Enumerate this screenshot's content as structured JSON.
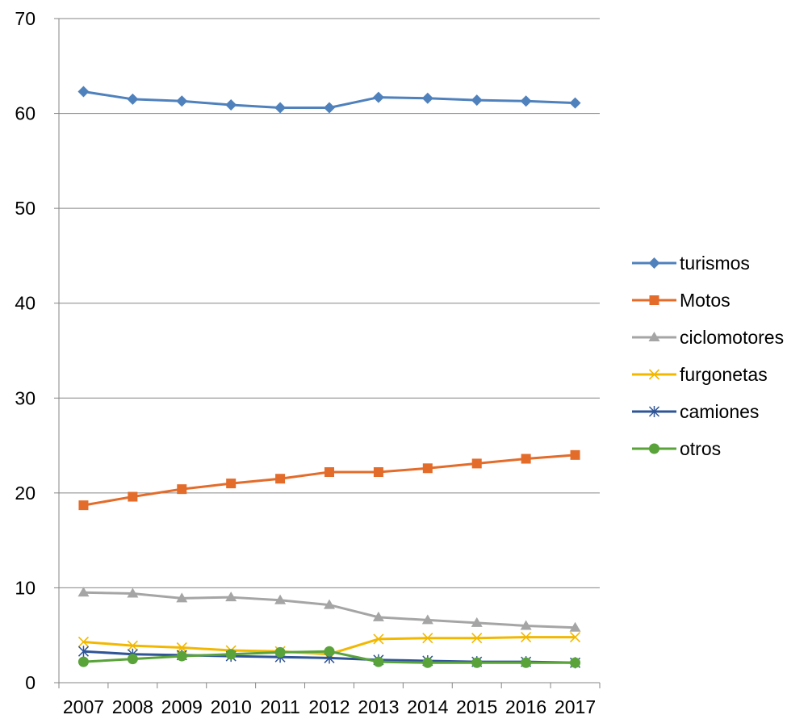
{
  "chart_data": {
    "type": "line",
    "title": "",
    "xlabel": "",
    "ylabel": "",
    "ylim": [
      0,
      70
    ],
    "yticks": [
      0,
      10,
      20,
      30,
      40,
      50,
      60,
      70
    ],
    "grid": "horizontal",
    "legend_position": "right",
    "categories": [
      "2007",
      "2008",
      "2009",
      "2010",
      "2011",
      "2012",
      "2013",
      "2014",
      "2015",
      "2016",
      "2017"
    ],
    "series": [
      {
        "name": "turismos",
        "color": "#4F81BD",
        "marker": "diamond",
        "values": [
          62.3,
          61.5,
          61.3,
          60.9,
          60.6,
          60.6,
          61.7,
          61.6,
          61.4,
          61.3,
          61.1
        ]
      },
      {
        "name": "Motos",
        "color": "#E36C2A",
        "marker": "square",
        "values": [
          18.7,
          19.6,
          20.4,
          21.0,
          21.5,
          22.2,
          22.2,
          22.6,
          23.1,
          23.6,
          24.0
        ]
      },
      {
        "name": "ciclomotores",
        "color": "#A5A5A5",
        "marker": "triangle",
        "values": [
          9.5,
          9.4,
          8.9,
          9.0,
          8.7,
          8.2,
          6.9,
          6.6,
          6.3,
          6.0,
          5.8
        ]
      },
      {
        "name": "furgonetas",
        "color": "#F2B800",
        "marker": "x",
        "values": [
          4.3,
          3.9,
          3.7,
          3.4,
          3.3,
          3.0,
          4.6,
          4.7,
          4.7,
          4.8,
          4.8
        ]
      },
      {
        "name": "camiones",
        "color": "#2F5597",
        "marker": "star",
        "values": [
          3.3,
          3.0,
          2.9,
          2.8,
          2.7,
          2.6,
          2.4,
          2.3,
          2.2,
          2.2,
          2.1
        ]
      },
      {
        "name": "otros",
        "color": "#59A33A",
        "marker": "circle",
        "values": [
          2.2,
          2.5,
          2.8,
          3.0,
          3.2,
          3.3,
          2.2,
          2.1,
          2.1,
          2.1,
          2.1
        ]
      }
    ]
  }
}
